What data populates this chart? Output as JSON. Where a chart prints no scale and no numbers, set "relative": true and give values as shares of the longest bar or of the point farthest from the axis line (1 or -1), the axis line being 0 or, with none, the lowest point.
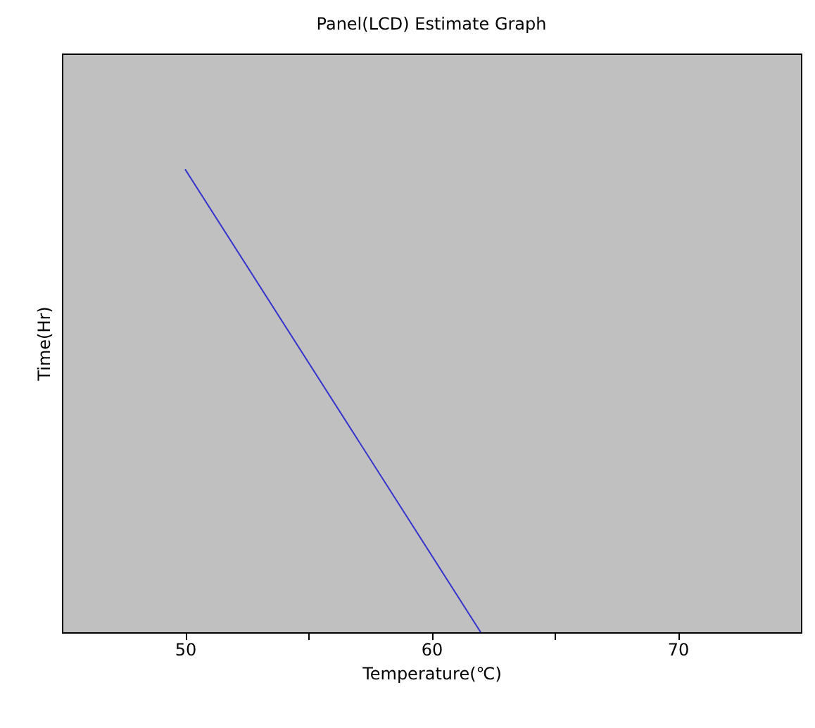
{
  "chart_data": {
    "type": "line",
    "title": "Panel(LCD) Estimate Graph",
    "xlabel": "Temperature(℃)",
    "ylabel": "Time(Hr)",
    "relative": true,
    "x": [
      50,
      62
    ],
    "series": [
      {
        "color": "#3333cc",
        "values": [
          1,
          0
        ]
      }
    ],
    "xlim": [
      45,
      75
    ],
    "xticks": [
      50,
      {
        "value": 55,
        "label": null
      },
      60,
      {
        "value": 65,
        "label": null
      },
      70
    ],
    "grid": false,
    "legend": false,
    "marker": "none",
    "line_style": "solid"
  }
}
